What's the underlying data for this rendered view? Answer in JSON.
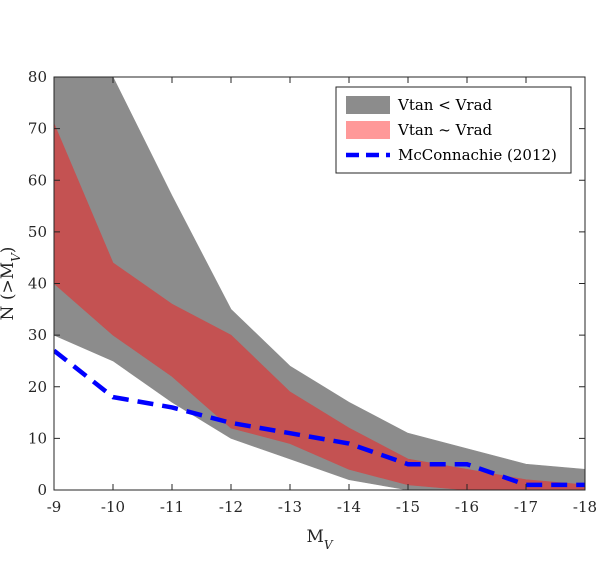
{
  "chart_data": {
    "type": "area",
    "title": "",
    "xlabel": "M",
    "xlabel_sub": "V",
    "ylabel": "N (>M",
    "ylabel_sub": "V",
    "ylabel_close": ")",
    "xlim": [
      -9,
      -18
    ],
    "ylim": [
      0,
      80
    ],
    "x_reversed": true,
    "x_ticks": [
      -9,
      -10,
      -11,
      -12,
      -13,
      -14,
      -15,
      -16,
      -17,
      -18
    ],
    "y_ticks": [
      0,
      10,
      20,
      30,
      40,
      50,
      60,
      70,
      80
    ],
    "grid": false,
    "legend_position": "top-right",
    "x": [
      -9,
      -10,
      -11,
      -12,
      -13,
      -14,
      -15,
      -16,
      -17,
      -18
    ],
    "series": [
      {
        "name": "Vtan < Vrad",
        "kind": "band",
        "color": "#8c8c8c",
        "upper": [
          80,
          80,
          57,
          35,
          24,
          17,
          11,
          8,
          5,
          4
        ],
        "lower": [
          30,
          25,
          17,
          10,
          6,
          2,
          0,
          0,
          0,
          0
        ]
      },
      {
        "name": "Vtan ~ Vrad",
        "kind": "band",
        "color": "#ff9999",
        "overlap_color": "#c45252",
        "upper": [
          71,
          44,
          36,
          30,
          19,
          12,
          6,
          4,
          2,
          1
        ],
        "lower": [
          40,
          30,
          22,
          12,
          9,
          4,
          1,
          0,
          0,
          0
        ]
      },
      {
        "name": "McConnachie (2012)",
        "kind": "line",
        "color": "#0000ff",
        "dash": "dashed",
        "values": [
          27,
          18,
          16,
          13,
          11,
          9,
          5,
          5,
          1,
          1
        ]
      }
    ]
  }
}
